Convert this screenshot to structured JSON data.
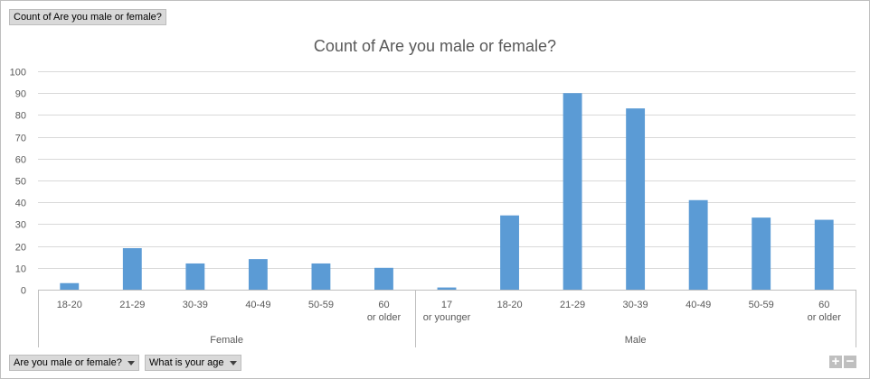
{
  "value_field": {
    "label": "Count of Are you male or female?"
  },
  "axis_fields": [
    {
      "label": "Are you male or female?"
    },
    {
      "label": "What is your age"
    }
  ],
  "zoom": {
    "in": "+",
    "out": "−"
  },
  "colors": {
    "bar": "#5b9bd5",
    "grid": "#d9d9d9",
    "text": "#595959"
  },
  "chart_data": {
    "type": "bar",
    "title": "Count of Are you male or female?",
    "xlabel": "",
    "ylabel": "",
    "ylim": [
      0,
      100
    ],
    "yticks": [
      0,
      10,
      20,
      30,
      40,
      50,
      60,
      70,
      80,
      90,
      100
    ],
    "grid": true,
    "legend": "none",
    "groups": [
      {
        "name": "Female",
        "categories": [
          "18-20",
          "21-29",
          "30-39",
          "40-49",
          "50-59",
          "60 or older"
        ],
        "values": [
          3,
          19,
          12,
          14,
          12,
          10
        ]
      },
      {
        "name": "Male",
        "categories": [
          "17 or younger",
          "18-20",
          "21-29",
          "30-39",
          "40-49",
          "50-59",
          "60 or older"
        ],
        "values": [
          1,
          34,
          90,
          83,
          41,
          33,
          32
        ]
      }
    ]
  }
}
